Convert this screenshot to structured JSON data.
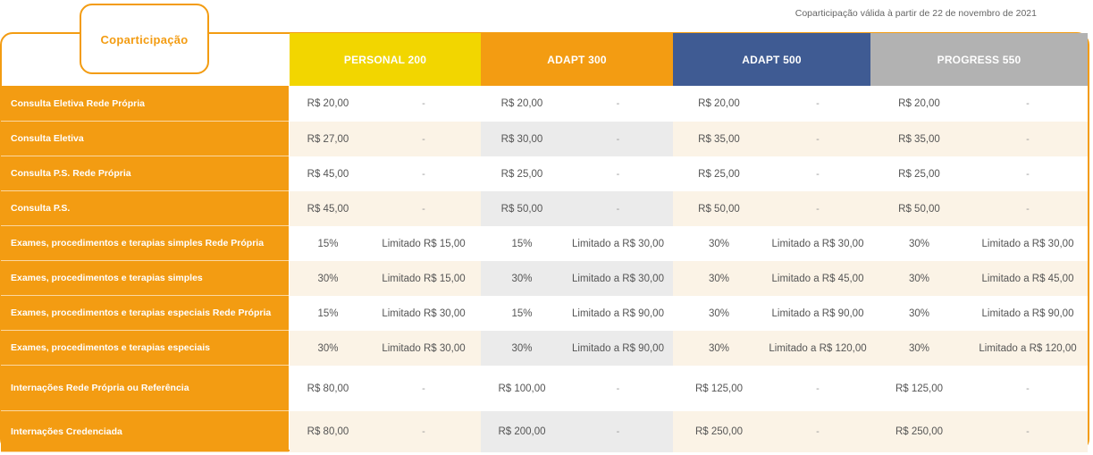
{
  "title": "Coparticipação",
  "validity_note": "Coparticipação válida à partir de 22 de novembro de 2021",
  "plans": [
    {
      "name": "PERSONAL 200",
      "color": "#f2d600",
      "tint": "#fbf3e6"
    },
    {
      "name": "ADAPT 300",
      "color": "#f39c12",
      "tint": "#ebebeb"
    },
    {
      "name": "ADAPT 500",
      "color": "#3f5b93",
      "tint": "#fbf3e6"
    },
    {
      "name": "PROGRESS 550",
      "color": "#b2b2b2",
      "tint": "#fbf3e6"
    }
  ],
  "rows": [
    {
      "label": "Consulta Eletiva Rede Própria",
      "values": [
        [
          "R$ 20,00",
          "-"
        ],
        [
          "R$ 20,00",
          "-"
        ],
        [
          "R$ 20,00",
          "-"
        ],
        [
          "R$ 20,00",
          "-"
        ]
      ]
    },
    {
      "label": "Consulta Eletiva",
      "values": [
        [
          "R$ 27,00",
          "-"
        ],
        [
          "R$ 30,00",
          "-"
        ],
        [
          "R$ 35,00",
          "-"
        ],
        [
          "R$ 35,00",
          "-"
        ]
      ]
    },
    {
      "label": "Consulta P.S. Rede Própria",
      "values": [
        [
          "R$ 45,00",
          "-"
        ],
        [
          "R$ 25,00",
          "-"
        ],
        [
          "R$ 25,00",
          "-"
        ],
        [
          "R$ 25,00",
          "-"
        ]
      ]
    },
    {
      "label": "Consulta P.S.",
      "values": [
        [
          "R$ 45,00",
          "-"
        ],
        [
          "R$ 50,00",
          "-"
        ],
        [
          "R$ 50,00",
          "-"
        ],
        [
          "R$ 50,00",
          "-"
        ]
      ]
    },
    {
      "label": "Exames, procedimentos e terapias simples Rede Própria",
      "values": [
        [
          "15%",
          "Limitado R$ 15,00"
        ],
        [
          "15%",
          "Limitado a R$ 30,00"
        ],
        [
          "30%",
          "Limitado a R$ 30,00"
        ],
        [
          "30%",
          "Limitado a R$ 30,00"
        ]
      ]
    },
    {
      "label": "Exames, procedimentos e terapias simples",
      "values": [
        [
          "30%",
          "Limitado R$ 15,00"
        ],
        [
          "30%",
          "Limitado a R$ 30,00"
        ],
        [
          "30%",
          "Limitado a R$ 45,00"
        ],
        [
          "30%",
          "Limitado a R$ 45,00"
        ]
      ]
    },
    {
      "label": "Exames, procedimentos e terapias especiais Rede Própria",
      "values": [
        [
          "15%",
          "Limitado R$ 30,00"
        ],
        [
          "15%",
          "Limitado a R$ 90,00"
        ],
        [
          "30%",
          "Limitado a R$ 90,00"
        ],
        [
          "30%",
          "Limitado a R$ 90,00"
        ]
      ]
    },
    {
      "label": "Exames, procedimentos e terapias especiais",
      "values": [
        [
          "30%",
          "Limitado R$ 30,00"
        ],
        [
          "30%",
          "Limitado a R$ 90,00"
        ],
        [
          "30%",
          "Limitado a R$ 120,00"
        ],
        [
          "30%",
          "Limitado a R$ 120,00"
        ]
      ]
    },
    {
      "label": "Internações Rede Própria ou Referência",
      "values": [
        [
          "R$ 80,00",
          "-"
        ],
        [
          "R$ 100,00",
          "-"
        ],
        [
          "R$ 125,00",
          "-"
        ],
        [
          "R$ 125,00",
          "-"
        ]
      ]
    },
    {
      "label": "Internações Credenciada",
      "values": [
        [
          "R$ 80,00",
          "-"
        ],
        [
          "R$ 200,00",
          "-"
        ],
        [
          "R$ 250,00",
          "-"
        ],
        [
          "R$ 250,00",
          "-"
        ]
      ]
    }
  ]
}
